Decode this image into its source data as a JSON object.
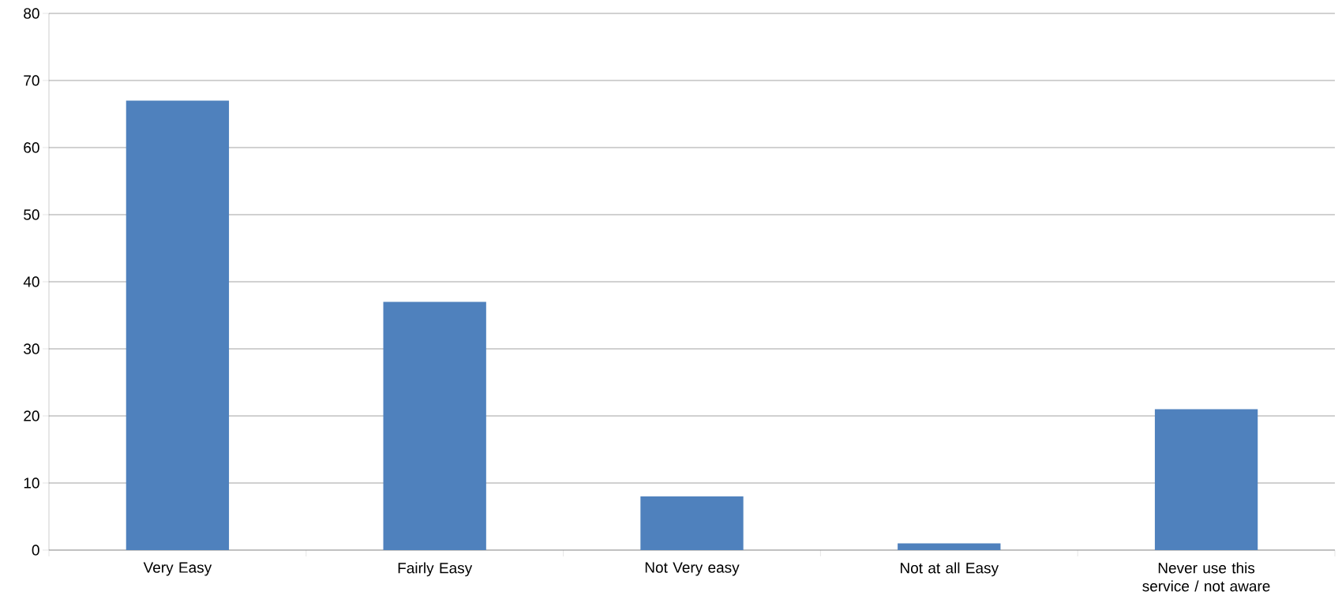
{
  "chart_data": {
    "type": "bar",
    "categories": [
      "Very Easy",
      "Fairly Easy",
      "Not Very easy",
      "Not at all Easy",
      "Never use this service / not aware"
    ],
    "values": [
      67,
      37,
      8,
      1,
      21
    ],
    "color": "#4f81bd",
    "ylim": [
      0,
      80
    ],
    "yticks": [
      0,
      10,
      20,
      30,
      40,
      50,
      60,
      70,
      80
    ],
    "grid": "y"
  }
}
